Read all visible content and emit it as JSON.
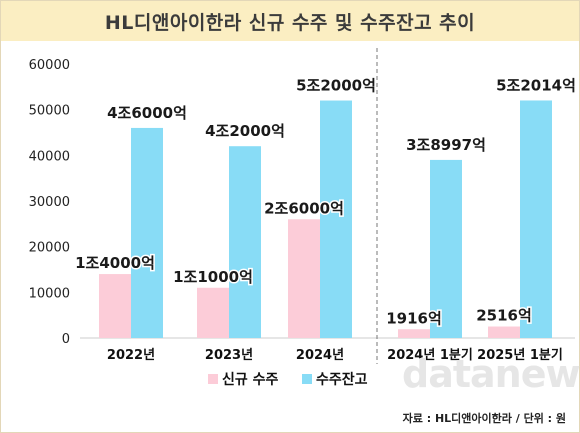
{
  "title": "HL디앤아이한라 신규 수주 및 수주잔고 추이",
  "source": "자료 : HL디앤아이한라 / 단위 : 원",
  "logo_text": "datanews",
  "chart_data": {
    "type": "bar",
    "categories": [
      "2022년",
      "2023년",
      "2024년",
      "2024년 1분기",
      "2025년 1분기"
    ],
    "ylim": [
      0,
      60000
    ],
    "yticks": [
      0,
      10000,
      20000,
      30000,
      40000,
      50000,
      60000
    ],
    "series": [
      {
        "name": "신규 수주",
        "color": "#fcccd8",
        "values": [
          14000,
          11000,
          26000,
          1916,
          2516
        ],
        "labels": [
          "1조4000억",
          "1조1000억",
          "2조6000억",
          "1916억",
          "2516억"
        ]
      },
      {
        "name": "수주잔고",
        "color": "#88dcf6",
        "values": [
          46000,
          42000,
          52000,
          38997,
          52014
        ],
        "labels": [
          "4조6000억",
          "4조2000억",
          "5조2000억",
          "3조8997억",
          "5조2014억"
        ]
      }
    ],
    "divider": true,
    "legend_position": "bottom"
  }
}
